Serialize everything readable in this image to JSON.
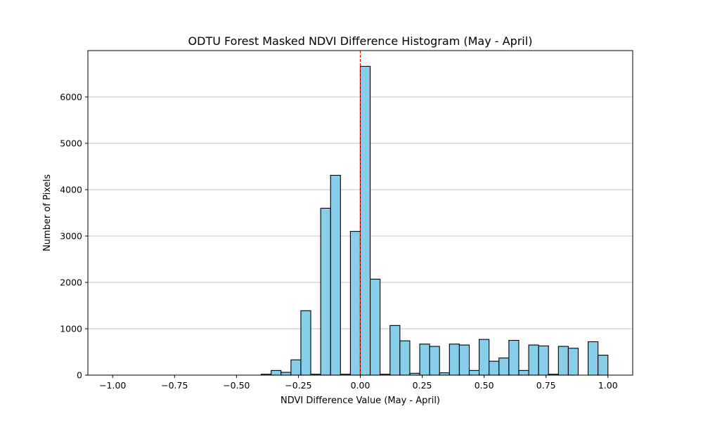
{
  "chart_data": {
    "type": "bar",
    "subtype": "histogram",
    "title": "ODTU Forest Masked NDVI Difference Histogram (May - April)",
    "xlabel": "NDVI Difference Value (May - April)",
    "ylabel": "Number of Pixels",
    "xlim": [
      -1.1,
      1.1
    ],
    "ylim": [
      0,
      7000
    ],
    "xticks": [
      -1.0,
      -0.75,
      -0.5,
      -0.25,
      0.0,
      0.25,
      0.5,
      0.75,
      1.0
    ],
    "xtick_labels": [
      "−1.00",
      "−0.75",
      "−0.50",
      "−0.25",
      "0.00",
      "0.25",
      "0.50",
      "0.75",
      "1.00"
    ],
    "yticks": [
      0,
      1000,
      2000,
      3000,
      4000,
      5000,
      6000
    ],
    "ytick_labels": [
      "0",
      "1000",
      "2000",
      "3000",
      "4000",
      "5000",
      "6000"
    ],
    "grid": {
      "x": false,
      "y": true
    },
    "bin_edges": [
      -1.0,
      -0.96,
      -0.92,
      -0.88,
      -0.84,
      -0.8,
      -0.76,
      -0.72,
      -0.68,
      -0.64,
      -0.6,
      -0.56,
      -0.52,
      -0.48,
      -0.44,
      -0.4,
      -0.36,
      -0.32,
      -0.28,
      -0.24,
      -0.2,
      -0.16,
      -0.12,
      -0.08,
      -0.04,
      0.0,
      0.04,
      0.08,
      0.12,
      0.16,
      0.2,
      0.24,
      0.28,
      0.32,
      0.36,
      0.4,
      0.44,
      0.48,
      0.52,
      0.56,
      0.6,
      0.64,
      0.68,
      0.72,
      0.76,
      0.8,
      0.84,
      0.88,
      0.92,
      0.96,
      1.0
    ],
    "counts": [
      0,
      0,
      0,
      0,
      0,
      0,
      0,
      0,
      0,
      0,
      0,
      0,
      0,
      0,
      0,
      20,
      100,
      60,
      330,
      1390,
      20,
      3600,
      4310,
      20,
      3100,
      6660,
      2070,
      20,
      1070,
      740,
      40,
      670,
      620,
      50,
      670,
      650,
      100,
      770,
      300,
      370,
      750,
      100,
      650,
      630,
      20,
      620,
      580,
      0,
      720,
      430
    ],
    "reference_line": {
      "x": 0.0,
      "style": "dashed",
      "color": "#ff0000"
    },
    "colors": {
      "bar_fill": "#87ceeb",
      "bar_edge": "#000000",
      "grid": "#c0c0c0"
    }
  }
}
